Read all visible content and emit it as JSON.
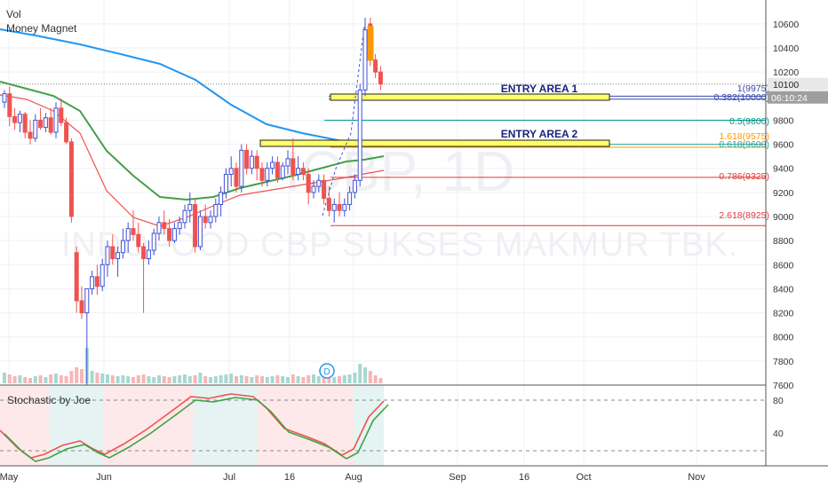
{
  "legend": {
    "line1": "Vol",
    "line2": "Money Magnet"
  },
  "watermark": {
    "symbol": "ICBP, 1D",
    "name": "INDOFOOD CBP SUKSES MAKMUR TBK."
  },
  "stochastic": {
    "label": "Stochastic by Joe",
    "ticks": [
      "80",
      "40"
    ]
  },
  "price_badge": {
    "price": "10100",
    "countdown": "06:10:24",
    "color": "#e8e8e8"
  },
  "colors": {
    "up": "#3f51d6",
    "down": "#ef5350",
    "entry_fill": "#ffff66",
    "ma_blue": "#2196f3",
    "ma_green": "#43a047",
    "ma_red": "#ef5350"
  },
  "chart_data": {
    "type": "candlestick",
    "y_axis": {
      "ticks": [
        "10600",
        "10400",
        "10200",
        "10000",
        "9800",
        "9600",
        "9400",
        "9200",
        "9000",
        "8800",
        "8600",
        "8400",
        "8200",
        "8000",
        "7800",
        "7600"
      ]
    },
    "x_axis": {
      "ticks": [
        "May",
        "Jun",
        "Jul",
        "16",
        "Aug",
        "Sep",
        "16",
        "Oct",
        "Nov"
      ]
    },
    "annotations": [
      {
        "text": "ENTRY AREA 1",
        "price_low": 9950,
        "price_high": 9995
      },
      {
        "text": "ENTRY AREA 2",
        "price_low": 9570,
        "price_high": 9620
      }
    ],
    "fib_levels": [
      {
        "label": "1(9975)",
        "price": 9975,
        "color": "#3949ab"
      },
      {
        "label": "0.382(10000)",
        "price": 10000,
        "color": "#3949ab"
      },
      {
        "label": "0.5(9800)",
        "price": 9800,
        "color": "#009688"
      },
      {
        "label": "1.618(9575)",
        "price": 9575,
        "color": "#ff9800"
      },
      {
        "label": "0.618(9600)",
        "price": 9600,
        "color": "#26a69a"
      },
      {
        "label": "0.786(9325)",
        "price": 9325,
        "color": "#e53935"
      },
      {
        "label": "2.618(8925)",
        "price": 8925,
        "color": "#e53935"
      }
    ],
    "last_price": 10100,
    "candles": [
      [
        9950,
        10050,
        9900,
        10020
      ],
      [
        10020,
        10080,
        9750,
        9830
      ],
      [
        9830,
        9900,
        9720,
        9780
      ],
      [
        9780,
        9880,
        9700,
        9850
      ],
      [
        9850,
        9870,
        9650,
        9700
      ],
      [
        9700,
        9800,
        9600,
        9650
      ],
      [
        9650,
        9850,
        9620,
        9800
      ],
      [
        9800,
        9900,
        9720,
        9740
      ],
      [
        9740,
        9860,
        9700,
        9820
      ],
      [
        9820,
        9900,
        9680,
        9700
      ],
      [
        9700,
        9950,
        9650,
        9900
      ],
      [
        9900,
        9980,
        9750,
        9780
      ],
      [
        9780,
        9820,
        9600,
        9620
      ],
      [
        9620,
        9650,
        8950,
        9000
      ],
      [
        8700,
        8750,
        8200,
        8300
      ],
      [
        8300,
        8420,
        8150,
        8200
      ],
      [
        8200,
        8400,
        7600,
        8400
      ],
      [
        8400,
        8550,
        8350,
        8500
      ],
      [
        8500,
        8600,
        8350,
        8420
      ],
      [
        8420,
        8650,
        8380,
        8600
      ],
      [
        8600,
        8800,
        8500,
        8750
      ],
      [
        8750,
        8850,
        8600,
        8650
      ],
      [
        8650,
        8750,
        8500,
        8700
      ],
      [
        8700,
        8900,
        8650,
        8800
      ],
      [
        8800,
        8950,
        8700,
        8900
      ],
      [
        8900,
        9050,
        8800,
        8850
      ],
      [
        8850,
        8950,
        8700,
        8750
      ],
      [
        8750,
        8780,
        8200,
        8650
      ],
      [
        8650,
        8800,
        8600,
        8720
      ],
      [
        8720,
        8900,
        8680,
        8860
      ],
      [
        8860,
        9000,
        8800,
        8950
      ],
      [
        8950,
        9050,
        8850,
        8900
      ],
      [
        8900,
        8980,
        8750,
        8800
      ],
      [
        8800,
        8950,
        8780,
        8900
      ],
      [
        8900,
        9000,
        8850,
        8950
      ],
      [
        8950,
        9100,
        8900,
        9050
      ],
      [
        9050,
        9200,
        8950,
        9100
      ],
      [
        9100,
        9150,
        8700,
        8750
      ],
      [
        8750,
        9050,
        8720,
        9000
      ],
      [
        9000,
        9100,
        8900,
        8950
      ],
      [
        8950,
        9050,
        8900,
        9000
      ],
      [
        9000,
        9150,
        8950,
        9100
      ],
      [
        9100,
        9250,
        9000,
        9200
      ],
      [
        9200,
        9400,
        9150,
        9350
      ],
      [
        9350,
        9500,
        9250,
        9400
      ],
      [
        9400,
        9450,
        9200,
        9250
      ],
      [
        9250,
        9600,
        9200,
        9550
      ],
      [
        9550,
        9600,
        9350,
        9400
      ],
      [
        9400,
        9550,
        9350,
        9500
      ],
      [
        9500,
        9550,
        9300,
        9400
      ],
      [
        9400,
        9450,
        9250,
        9300
      ],
      [
        9300,
        9450,
        9250,
        9400
      ],
      [
        9400,
        9500,
        9350,
        9450
      ],
      [
        9450,
        9500,
        9280,
        9320
      ],
      [
        9320,
        9450,
        9300,
        9420
      ],
      [
        9420,
        9550,
        9350,
        9480
      ],
      [
        9480,
        9650,
        9300,
        9350
      ],
      [
        9350,
        9500,
        9300,
        9400
      ],
      [
        9400,
        9450,
        9300,
        9350
      ],
      [
        9350,
        9400,
        9100,
        9200
      ],
      [
        9200,
        9300,
        9150,
        9250
      ],
      [
        9250,
        9350,
        9200,
        9300
      ],
      [
        9300,
        9350,
        9100,
        9150
      ],
      [
        9150,
        9250,
        9000,
        9050
      ],
      [
        9050,
        9150,
        8950,
        9100
      ],
      [
        9100,
        9200,
        9000,
        9050
      ],
      [
        9050,
        9150,
        9000,
        9100
      ],
      [
        9100,
        9250,
        9050,
        9200
      ],
      [
        9200,
        9350,
        9150,
        9300
      ],
      [
        9300,
        10100,
        9250,
        10050
      ],
      [
        10050,
        10650,
        10000,
        10550
      ],
      [
        10600,
        10650,
        10250,
        10300
      ],
      [
        10300,
        10350,
        10150,
        10200
      ],
      [
        10200,
        10250,
        10050,
        10100
      ]
    ]
  }
}
